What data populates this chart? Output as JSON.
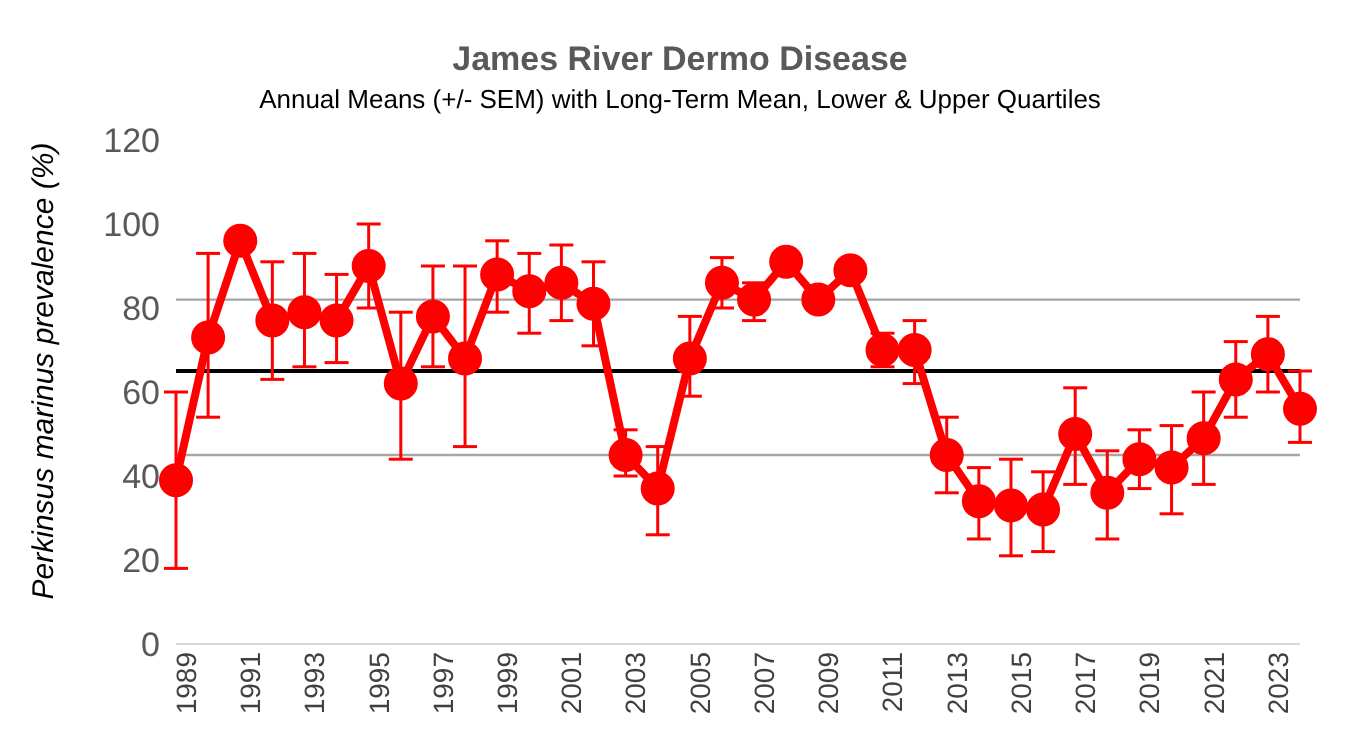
{
  "chart_data": {
    "type": "line",
    "title": "James River Dermo Disease",
    "subtitle": "Annual Means (+/- SEM) with Long-Term Mean, Lower & Upper Quartiles",
    "ylabel": "Perkinsus marinus prevalence (%)",
    "categories": [
      "1989",
      null,
      "1991",
      null,
      "1993",
      null,
      "1995",
      null,
      "1997",
      null,
      "1999",
      null,
      "2001",
      null,
      "2003",
      null,
      "2005",
      null,
      "2007",
      null,
      "2009",
      null,
      "2011",
      null,
      "2013",
      null,
      "2015",
      null,
      "2017",
      null,
      "2019",
      null,
      "2021",
      null,
      "2023",
      null
    ],
    "series": [
      {
        "color": "#ff0000",
        "values": [
          39,
          73,
          96,
          77,
          79,
          77,
          90,
          62,
          78,
          68,
          88,
          84,
          86,
          81,
          45,
          37,
          68,
          86,
          82,
          91,
          82,
          89,
          70,
          70,
          45,
          34,
          33,
          32,
          50,
          36,
          44,
          42,
          49,
          63,
          69,
          56
        ],
        "errors": [
          [
            18,
            60
          ],
          [
            54,
            93
          ],
          null,
          [
            63,
            91
          ],
          [
            66,
            93
          ],
          [
            67,
            88
          ],
          [
            80,
            100
          ],
          [
            44,
            79
          ],
          [
            66,
            90
          ],
          [
            47,
            90
          ],
          [
            79,
            96
          ],
          [
            74,
            93
          ],
          [
            77,
            95
          ],
          [
            71,
            91
          ],
          [
            40,
            51
          ],
          [
            26,
            47
          ],
          [
            59,
            78
          ],
          [
            80,
            92
          ],
          [
            77,
            86
          ],
          null,
          null,
          null,
          [
            66,
            74
          ],
          [
            62,
            77
          ],
          [
            36,
            54
          ],
          [
            25,
            42
          ],
          [
            21,
            44
          ],
          [
            22,
            41
          ],
          [
            38,
            61
          ],
          [
            25,
            46
          ],
          [
            37,
            51
          ],
          [
            31,
            52
          ],
          [
            38,
            60
          ],
          [
            54,
            72
          ],
          [
            60,
            78
          ],
          [
            48,
            65
          ]
        ]
      }
    ],
    "ylim": [
      0,
      120
    ],
    "yticks": [
      0,
      20,
      40,
      60,
      80,
      100,
      120
    ],
    "grid": false,
    "legend": false,
    "marker": "circle",
    "line_style": "solid",
    "ref_lines": [
      {
        "axis": "y",
        "value": 65,
        "color": "#000000"
      },
      {
        "axis": "y",
        "value": 82,
        "color": "#a6a6a6"
      },
      {
        "axis": "y",
        "value": 45,
        "color": "#a6a6a6"
      }
    ]
  }
}
